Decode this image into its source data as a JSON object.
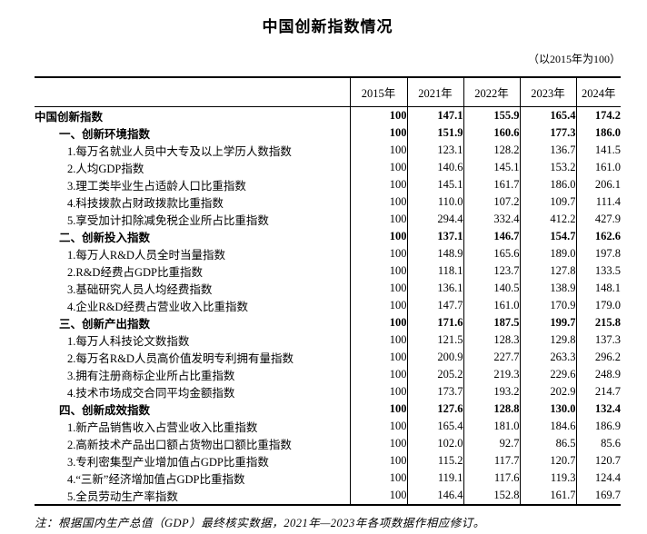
{
  "title": "中国创新指数情况",
  "subtitle": "（以2015年为100）",
  "table": {
    "columns": [
      "2015年",
      "2021年",
      "2022年",
      "2023年",
      "2024年"
    ],
    "rows": [
      {
        "label": "中国创新指数",
        "level": 0,
        "bold": true,
        "values": [
          "100",
          "147.1",
          "155.9",
          "165.4",
          "174.2"
        ]
      },
      {
        "label": "一、创新环境指数",
        "level": 1,
        "bold": true,
        "values": [
          "100",
          "151.9",
          "160.6",
          "177.3",
          "186.0"
        ]
      },
      {
        "label": "1.每万名就业人员中大专及以上学历人数指数",
        "level": 2,
        "bold": false,
        "values": [
          "100",
          "123.1",
          "128.2",
          "136.7",
          "141.5"
        ]
      },
      {
        "label": "2.人均GDP指数",
        "level": 2,
        "bold": false,
        "values": [
          "100",
          "140.6",
          "145.1",
          "153.2",
          "161.0"
        ]
      },
      {
        "label": "3.理工类毕业生占适龄人口比重指数",
        "level": 2,
        "bold": false,
        "values": [
          "100",
          "145.1",
          "161.7",
          "186.0",
          "206.1"
        ]
      },
      {
        "label": "4.科技拨款占财政拨款比重指数",
        "level": 2,
        "bold": false,
        "values": [
          "100",
          "110.0",
          "107.2",
          "109.7",
          "111.4"
        ]
      },
      {
        "label": "5.享受加计扣除减免税企业所占比重指数",
        "level": 2,
        "bold": false,
        "values": [
          "100",
          "294.4",
          "332.4",
          "412.2",
          "427.9"
        ]
      },
      {
        "label": "二、创新投入指数",
        "level": 1,
        "bold": true,
        "values": [
          "100",
          "137.1",
          "146.7",
          "154.7",
          "162.6"
        ]
      },
      {
        "label": "1.每万人R&D人员全时当量指数",
        "level": 2,
        "bold": false,
        "values": [
          "100",
          "148.9",
          "165.6",
          "189.0",
          "197.8"
        ]
      },
      {
        "label": "2.R&D经费占GDP比重指数",
        "level": 2,
        "bold": false,
        "values": [
          "100",
          "118.1",
          "123.7",
          "127.8",
          "133.5"
        ]
      },
      {
        "label": "3.基础研究人员人均经费指数",
        "level": 2,
        "bold": false,
        "values": [
          "100",
          "136.1",
          "140.5",
          "138.9",
          "148.1"
        ]
      },
      {
        "label": "4.企业R&D经费占营业收入比重指数",
        "level": 2,
        "bold": false,
        "values": [
          "100",
          "147.7",
          "161.0",
          "170.9",
          "179.0"
        ]
      },
      {
        "label": "三、创新产出指数",
        "level": 1,
        "bold": true,
        "values": [
          "100",
          "171.6",
          "187.5",
          "199.7",
          "215.8"
        ]
      },
      {
        "label": "1.每万人科技论文数指数",
        "level": 2,
        "bold": false,
        "values": [
          "100",
          "121.5",
          "128.3",
          "129.8",
          "137.3"
        ]
      },
      {
        "label": "2.每万名R&D人员高价值发明专利拥有量指数",
        "level": 2,
        "bold": false,
        "values": [
          "100",
          "200.9",
          "227.7",
          "263.3",
          "296.2"
        ]
      },
      {
        "label": "3.拥有注册商标企业所占比重指数",
        "level": 2,
        "bold": false,
        "values": [
          "100",
          "205.2",
          "219.3",
          "229.6",
          "248.9"
        ]
      },
      {
        "label": "4.技术市场成交合同平均金额指数",
        "level": 2,
        "bold": false,
        "values": [
          "100",
          "173.7",
          "193.2",
          "202.9",
          "214.7"
        ]
      },
      {
        "label": "四、创新成效指数",
        "level": 1,
        "bold": true,
        "values": [
          "100",
          "127.6",
          "128.8",
          "130.0",
          "132.4"
        ]
      },
      {
        "label": "1.新产品销售收入占营业收入比重指数",
        "level": 2,
        "bold": false,
        "values": [
          "100",
          "165.4",
          "181.0",
          "184.6",
          "186.9"
        ]
      },
      {
        "label": "2.高新技术产品出口额占货物出口额比重指数",
        "level": 2,
        "bold": false,
        "values": [
          "100",
          "102.0",
          "92.7",
          "86.5",
          "85.6"
        ]
      },
      {
        "label": "3.专利密集型产业增加值占GDP比重指数",
        "level": 2,
        "bold": false,
        "values": [
          "100",
          "115.2",
          "117.7",
          "120.7",
          "120.7"
        ]
      },
      {
        "label": "4.“三新”经济增加值占GDP比重指数",
        "level": 2,
        "bold": false,
        "values": [
          "100",
          "119.1",
          "117.6",
          "119.3",
          "124.4"
        ]
      },
      {
        "label": "5.全员劳动生产率指数",
        "level": 2,
        "bold": false,
        "values": [
          "100",
          "146.4",
          "152.8",
          "161.7",
          "169.7"
        ]
      }
    ]
  },
  "footnote": "注：根据国内生产总值（GDP）最终核实数据，2021年—2023年各项数据作相应修订。"
}
